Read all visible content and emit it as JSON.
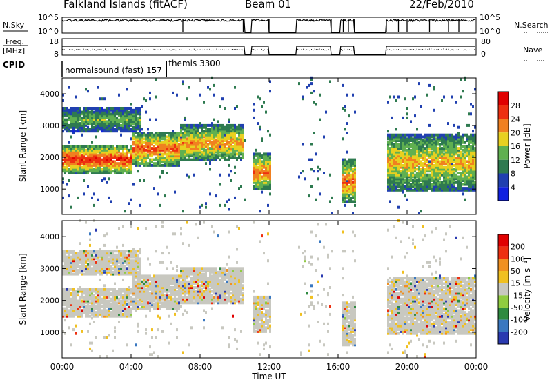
{
  "header": {
    "title": "Falkland Islands (fitACF)",
    "beam": "Beam 01",
    "date": "22/Feb/2010"
  },
  "chart_data": {
    "type": "heatmap",
    "x_ticks": [
      "00:00",
      "04:00",
      "08:00",
      "12:00",
      "16:00",
      "20:00",
      "00:00"
    ],
    "xlabel": "Time UT",
    "xlim_hours": [
      0,
      24
    ],
    "panels": {
      "nsky": {
        "label": "N.Sky",
        "right_label": "N.Search",
        "left_ticks": [
          "10^5",
          "10^0"
        ],
        "right_ticks": [
          "10^5",
          "10^0"
        ]
      },
      "freq": {
        "label_line1": "Freq.",
        "label_line2": "[MHz]",
        "right_label": "Nave",
        "left_ticks": [
          "18",
          "8"
        ],
        "right_ticks": [
          "80",
          "0"
        ]
      },
      "cpid": {
        "label": "CPID",
        "programs": [
          {
            "name": "normalsound (fast) 157",
            "start_hour": 0
          },
          {
            "name": "themis 3300",
            "start_hour": 6
          }
        ]
      },
      "power": {
        "ylabel": "Slant Range [km]",
        "y_ticks": [
          1000,
          2000,
          3000,
          4000
        ],
        "ylim": [
          200,
          4500
        ],
        "colorbar_label": "Power [dB]",
        "colorbar_ticks": [
          "4",
          "8",
          "12",
          "16",
          "20",
          "24",
          "28"
        ],
        "colors": [
          "#1020e0",
          "#2040b0",
          "#2e7a50",
          "#60b050",
          "#e8d020",
          "#f08020",
          "#ee3010",
          "#e00000"
        ]
      },
      "velocity": {
        "ylabel": "Slant Range [km]",
        "y_ticks": [
          1000,
          2000,
          3000,
          4000
        ],
        "ylim": [
          200,
          4500
        ],
        "colorbar_label": "Velocity [m s⁻¹]",
        "colorbar_ticks": [
          "200",
          "100",
          "50",
          "15",
          "-15",
          "-50",
          "-100",
          "-200"
        ],
        "colors": [
          "#2a3ab0",
          "#3a78c0",
          "#2e8a40",
          "#90cc40",
          "#c8c8c0",
          "#f0c020",
          "#f09020",
          "#ee3010",
          "#e00000"
        ]
      }
    },
    "data_gaps_hours": [
      [
        10.6,
        11.0
      ],
      [
        12.0,
        13.6
      ],
      [
        15.6,
        16.15
      ],
      [
        16.95,
        18.8
      ]
    ],
    "echo_bands": [
      {
        "t0": 0.0,
        "t1": 4.0,
        "r0": 1500,
        "r1": 2300,
        "power": 27
      },
      {
        "t0": 4.0,
        "t1": 6.8,
        "r0": 1750,
        "r1": 2700,
        "power": 25
      },
      {
        "t0": 6.8,
        "t1": 10.5,
        "r0": 1900,
        "r1": 2900,
        "power": 22
      },
      {
        "t0": 11.0,
        "t1": 12.0,
        "r0": 1000,
        "r1": 2000,
        "power": 24
      },
      {
        "t0": 16.15,
        "t1": 16.95,
        "r0": 600,
        "r1": 1800,
        "power": 24
      },
      {
        "t0": 18.8,
        "t1": 24.0,
        "r0": 1000,
        "r1": 2600,
        "power": 20
      },
      {
        "t0": 0.0,
        "t1": 4.5,
        "r0": 2800,
        "r1": 3500,
        "power": 14
      }
    ]
  }
}
